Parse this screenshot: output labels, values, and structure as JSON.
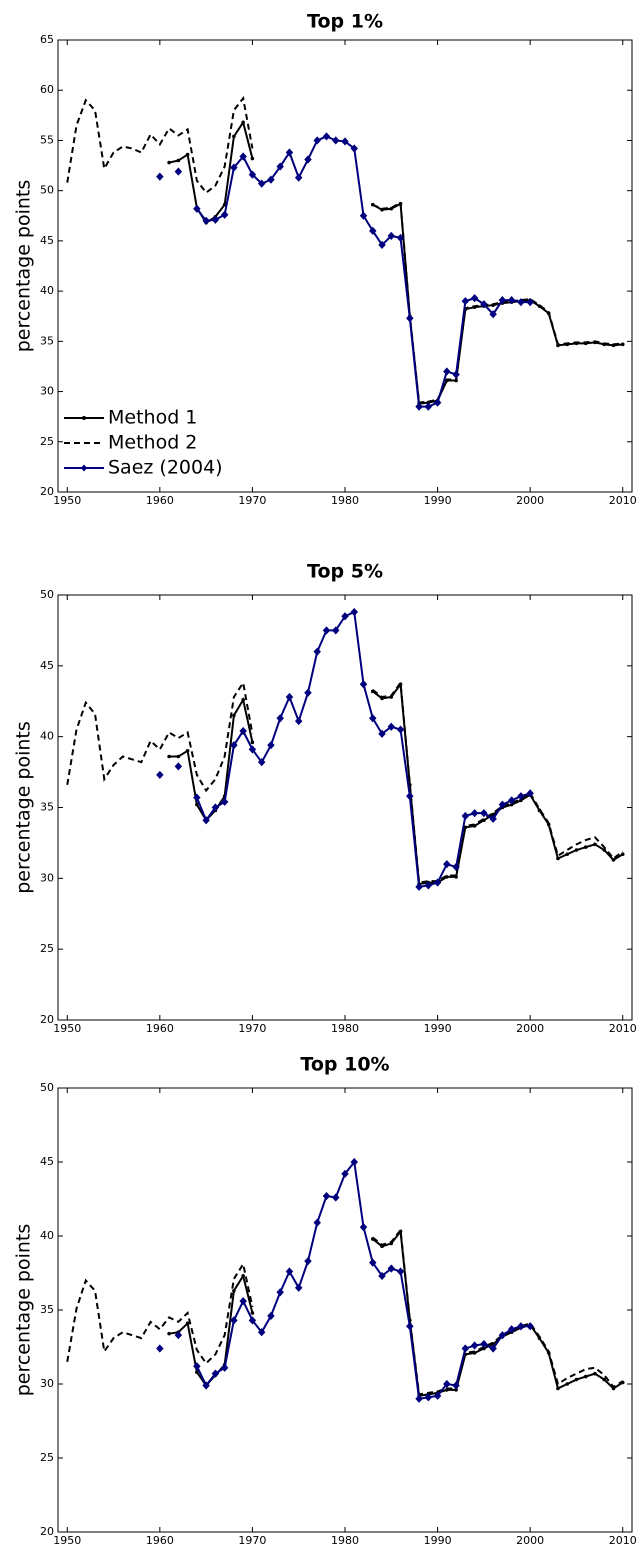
{
  "chart_data": [
    {
      "type": "line",
      "title": "Top 1%",
      "ylabel": "percentage points",
      "x": [
        1950,
        1951,
        1952,
        1953,
        1954,
        1955,
        1956,
        1957,
        1958,
        1959,
        1960,
        1961,
        1962,
        1963,
        1964,
        1965,
        1966,
        1967,
        1968,
        1969,
        1970,
        1971,
        1972,
        1973,
        1974,
        1975,
        1976,
        1977,
        1978,
        1979,
        1980,
        1981,
        1982,
        1983,
        1984,
        1985,
        1986,
        1987,
        1988,
        1989,
        1990,
        1991,
        1992,
        1993,
        1994,
        1995,
        1996,
        1997,
        1998,
        1999,
        2000,
        2001,
        2002,
        2003,
        2004,
        2005,
        2006,
        2007,
        2008,
        2009,
        2010
      ],
      "xlim": [
        1949,
        2011
      ],
      "xticks": [
        1950,
        1960,
        1970,
        1980,
        1990,
        2000,
        2010
      ],
      "ylim": [
        20,
        65
      ],
      "yticks": [
        20,
        25,
        30,
        35,
        40,
        45,
        50,
        55,
        60,
        65
      ],
      "legend": "lower left",
      "series": [
        {
          "name": "Method 1",
          "color": "#000000",
          "linestyle": "solid",
          "marker": "dot",
          "values": [
            null,
            null,
            null,
            null,
            null,
            null,
            null,
            null,
            null,
            null,
            null,
            52.8,
            53,
            53.6,
            48.3,
            46.8,
            47.4,
            48.6,
            55.4,
            56.8,
            53.2,
            null,
            null,
            null,
            null,
            null,
            null,
            null,
            null,
            null,
            null,
            null,
            null,
            48.6,
            48.1,
            48.2,
            48.7,
            37.5,
            28.8,
            28.9,
            29.1,
            31.1,
            31.1,
            38.2,
            38.4,
            38.5,
            38.6,
            38.8,
            38.9,
            39.0,
            39.1,
            38.5,
            37.8,
            34.6,
            34.7,
            34.8,
            34.8,
            34.9,
            34.7,
            34.6,
            34.7
          ]
        },
        {
          "name": "Method 2",
          "color": "#000000",
          "linestyle": "dashed",
          "marker": "none",
          "values": [
            50.8,
            56.5,
            59,
            58,
            52.2,
            53.8,
            54.4,
            54.2,
            53.8,
            55.6,
            54.6,
            56.2,
            55.5,
            56.1,
            51,
            49.8,
            50.5,
            52.4,
            58,
            59.2,
            54.2,
            null,
            null,
            null,
            null,
            null,
            null,
            null,
            null,
            null,
            null,
            null,
            null,
            48.6,
            48.2,
            48.3,
            48.8,
            37.6,
            28.9,
            29.0,
            29.2,
            31.2,
            31.2,
            38.3,
            38.5,
            38.6,
            38.7,
            38.9,
            39.0,
            39.1,
            39.2,
            38.6,
            37.9,
            34.7,
            34.8,
            34.9,
            34.9,
            35.0,
            34.8,
            34.7,
            34.8
          ]
        },
        {
          "name": "Saez (2004)",
          "color": "#00007f",
          "linestyle": "solid",
          "marker": "diamond",
          "values": [
            null,
            null,
            null,
            null,
            null,
            null,
            null,
            null,
            null,
            null,
            51.4,
            null,
            51.9,
            null,
            48.2,
            47.0,
            47.1,
            47.6,
            52.3,
            53.4,
            51.6,
            50.7,
            51.1,
            52.4,
            53.8,
            51.3,
            53.1,
            55,
            55.4,
            55,
            54.9,
            54.2,
            47.5,
            46,
            44.6,
            45.5,
            45.3,
            37.3,
            28.5,
            28.5,
            28.9,
            32,
            31.7,
            39,
            39.3,
            38.7,
            37.7,
            39.1,
            39.1,
            38.9,
            38.9,
            null,
            null,
            null,
            null,
            null,
            null,
            null,
            null,
            null,
            null
          ]
        }
      ]
    },
    {
      "type": "line",
      "title": "Top 5%",
      "ylabel": "percentage points",
      "x": [
        1950,
        1951,
        1952,
        1953,
        1954,
        1955,
        1956,
        1957,
        1958,
        1959,
        1960,
        1961,
        1962,
        1963,
        1964,
        1965,
        1966,
        1967,
        1968,
        1969,
        1970,
        1971,
        1972,
        1973,
        1974,
        1975,
        1976,
        1977,
        1978,
        1979,
        1980,
        1981,
        1982,
        1983,
        1984,
        1985,
        1986,
        1987,
        1988,
        1989,
        1990,
        1991,
        1992,
        1993,
        1994,
        1995,
        1996,
        1997,
        1998,
        1999,
        2000,
        2001,
        2002,
        2003,
        2004,
        2005,
        2006,
        2007,
        2008,
        2009,
        2010
      ],
      "xlim": [
        1949,
        2011
      ],
      "xticks": [
        1950,
        1960,
        1970,
        1980,
        1990,
        2000,
        2010
      ],
      "ylim": [
        20,
        50
      ],
      "yticks": [
        20,
        25,
        30,
        35,
        40,
        45,
        50
      ],
      "series": [
        {
          "name": "Method 1",
          "color": "#000000",
          "linestyle": "solid",
          "marker": "dot",
          "values": [
            null,
            null,
            null,
            null,
            null,
            null,
            null,
            null,
            null,
            null,
            null,
            38.6,
            38.6,
            39,
            35.2,
            34.1,
            34.8,
            35.8,
            41.5,
            42.6,
            39.6,
            null,
            null,
            null,
            null,
            null,
            null,
            null,
            null,
            null,
            null,
            null,
            null,
            43.2,
            42.7,
            42.8,
            43.7,
            36.6,
            29.6,
            29.7,
            29.7,
            30.1,
            30.1,
            33.6,
            33.7,
            34.1,
            34.5,
            35,
            35.2,
            35.5,
            35.9,
            34.8,
            33.8,
            31.4,
            31.7,
            32.0,
            32.2,
            32.4,
            32.0,
            31.3,
            31.7
          ]
        },
        {
          "name": "Method 2",
          "color": "#000000",
          "linestyle": "dashed",
          "marker": "none",
          "values": [
            36.6,
            40.5,
            42.4,
            41.6,
            37,
            38,
            38.6,
            38.4,
            38.2,
            39.7,
            39.1,
            40.3,
            39.9,
            40.3,
            37.3,
            36.2,
            37,
            38.6,
            42.8,
            43.8,
            40.2,
            null,
            null,
            null,
            null,
            null,
            null,
            null,
            null,
            null,
            null,
            null,
            null,
            43.3,
            42.8,
            42.9,
            43.8,
            36.7,
            29.7,
            29.8,
            29.8,
            30.2,
            30.2,
            33.7,
            33.8,
            34.2,
            34.6,
            35.1,
            35.3,
            35.6,
            36.0,
            34.9,
            33.9,
            31.6,
            32.0,
            32.4,
            32.7,
            32.9,
            32.2,
            31.4,
            31.9
          ]
        },
        {
          "name": "Saez (2004)",
          "color": "#00007f",
          "linestyle": "solid",
          "marker": "diamond",
          "values": [
            null,
            null,
            null,
            null,
            null,
            null,
            null,
            null,
            null,
            null,
            37.3,
            null,
            37.9,
            null,
            35.7,
            34.1,
            35,
            35.4,
            39.4,
            40.4,
            39.1,
            38.2,
            39.4,
            41.3,
            42.8,
            41.1,
            43.1,
            46,
            47.5,
            47.5,
            48.5,
            48.8,
            43.7,
            41.3,
            40.2,
            40.7,
            40.5,
            35.8,
            29.4,
            29.5,
            29.7,
            31,
            30.8,
            34.4,
            34.6,
            34.6,
            34.2,
            35.2,
            35.5,
            35.8,
            36.0,
            null,
            null,
            null,
            null,
            null,
            null,
            null,
            null,
            null,
            null
          ]
        }
      ]
    },
    {
      "type": "line",
      "title": "Top 10%",
      "ylabel": "percentage points",
      "x": [
        1950,
        1951,
        1952,
        1953,
        1954,
        1955,
        1956,
        1957,
        1958,
        1959,
        1960,
        1961,
        1962,
        1963,
        1964,
        1965,
        1966,
        1967,
        1968,
        1969,
        1970,
        1971,
        1972,
        1973,
        1974,
        1975,
        1976,
        1977,
        1978,
        1979,
        1980,
        1981,
        1982,
        1983,
        1984,
        1985,
        1986,
        1987,
        1988,
        1989,
        1990,
        1991,
        1992,
        1993,
        1994,
        1995,
        1996,
        1997,
        1998,
        1999,
        2000,
        2001,
        2002,
        2003,
        2004,
        2005,
        2006,
        2007,
        2008,
        2009,
        2010
      ],
      "xlim": [
        1949,
        2011
      ],
      "xticks": [
        1950,
        1960,
        1970,
        1980,
        1990,
        2000,
        2010
      ],
      "ylim": [
        20,
        50
      ],
      "yticks": [
        20,
        25,
        30,
        35,
        40,
        45,
        50
      ],
      "series": [
        {
          "name": "Method 1",
          "color": "#000000",
          "linestyle": "solid",
          "marker": "dot",
          "values": [
            null,
            null,
            null,
            null,
            null,
            null,
            null,
            null,
            null,
            null,
            null,
            33.4,
            33.5,
            34.1,
            30.8,
            29.9,
            30.6,
            31.3,
            36.3,
            37.3,
            34.8,
            null,
            null,
            null,
            null,
            null,
            null,
            null,
            null,
            null,
            null,
            null,
            null,
            39.8,
            39.3,
            39.5,
            40.3,
            34.3,
            29.2,
            29.3,
            29.4,
            29.6,
            29.6,
            32.0,
            32.1,
            32.4,
            32.7,
            33.2,
            33.5,
            33.8,
            34.0,
            33.1,
            32.1,
            29.7,
            30.0,
            30.3,
            30.5,
            30.7,
            30.3,
            29.7,
            30.1
          ]
        },
        {
          "name": "Method 2",
          "color": "#000000",
          "linestyle": "dashed",
          "marker": "none",
          "values": [
            31.5,
            35.1,
            37,
            36.3,
            32.2,
            33.1,
            33.5,
            33.3,
            33.1,
            34.2,
            33.7,
            34.5,
            34.2,
            34.8,
            32.3,
            31.4,
            32,
            33.3,
            37.1,
            38.1,
            35.2,
            null,
            null,
            null,
            null,
            null,
            null,
            null,
            null,
            null,
            null,
            null,
            null,
            39.9,
            39.4,
            39.6,
            40.4,
            34.4,
            29.3,
            29.4,
            29.5,
            29.7,
            29.7,
            32.1,
            32.2,
            32.5,
            32.8,
            33.3,
            33.6,
            33.9,
            34.1,
            33.2,
            32.2,
            30.0,
            30.4,
            30.7,
            31.0,
            31.1,
            30.6,
            29.8,
            30.2
          ]
        },
        {
          "name": "Saez (2004)",
          "color": "#00007f",
          "linestyle": "solid",
          "marker": "diamond",
          "values": [
            null,
            null,
            null,
            null,
            null,
            null,
            null,
            null,
            null,
            null,
            32.4,
            null,
            33.3,
            null,
            31.2,
            29.9,
            30.7,
            31.1,
            34.3,
            35.6,
            34.3,
            33.5,
            34.6,
            36.2,
            37.6,
            36.5,
            38.3,
            40.9,
            42.7,
            42.6,
            44.2,
            45,
            40.6,
            38.2,
            37.3,
            37.8,
            37.6,
            33.9,
            29,
            29.1,
            29.2,
            30,
            29.9,
            32.4,
            32.6,
            32.7,
            32.4,
            33.3,
            33.7,
            33.9,
            33.9,
            null,
            null,
            null,
            null,
            null,
            null,
            null,
            null,
            null,
            null
          ]
        }
      ]
    }
  ]
}
